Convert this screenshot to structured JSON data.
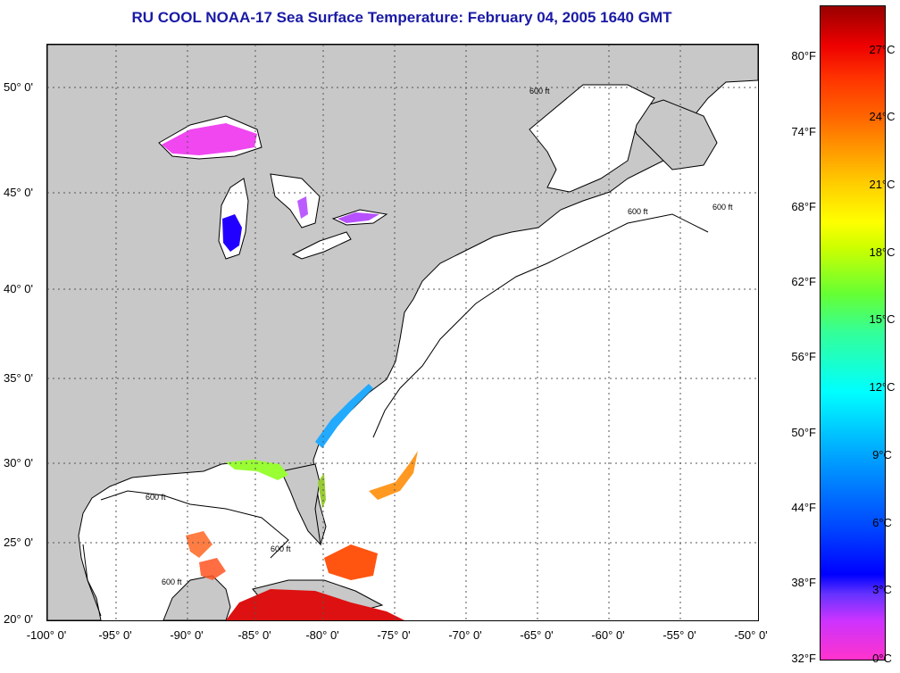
{
  "title": "RU COOL  NOAA-17  Sea Surface Temperature:  February 04, 2005 1640 GMT",
  "lat_labels": [
    "50° 0'",
    "45° 0'",
    "40° 0'",
    "35° 0'",
    "30° 0'",
    "25° 0'",
    "20° 0'"
  ],
  "lon_labels": [
    "-100° 0'",
    "-95° 0'",
    "-90° 0'",
    "-85° 0'",
    "-80° 0'",
    "-75° 0'",
    "-70° 0'",
    "-65° 0'",
    "-60° 0'",
    "-55° 0'",
    "-50° 0'"
  ],
  "isobath_label": "600 ft",
  "colorbar": {
    "fahrenheit": [
      "80°F",
      "74°F",
      "68°F",
      "62°F",
      "56°F",
      "50°F",
      "44°F",
      "38°F",
      "32°F"
    ],
    "celsius": [
      "27°C",
      "24°C",
      "21°C",
      "18°C",
      "15°C",
      "12°C",
      "9°C",
      "6°C",
      "3°C",
      "0°C"
    ]
  },
  "colors": {
    "land": "#c8c8c8",
    "ocean": "#ffffff",
    "title": "#1a1aa6",
    "gulf_stream_warm": "#ff3300",
    "florida_coast": "#33ccff",
    "lake_michigan": "#0000ff",
    "lake_superior": "#ff33cc"
  }
}
